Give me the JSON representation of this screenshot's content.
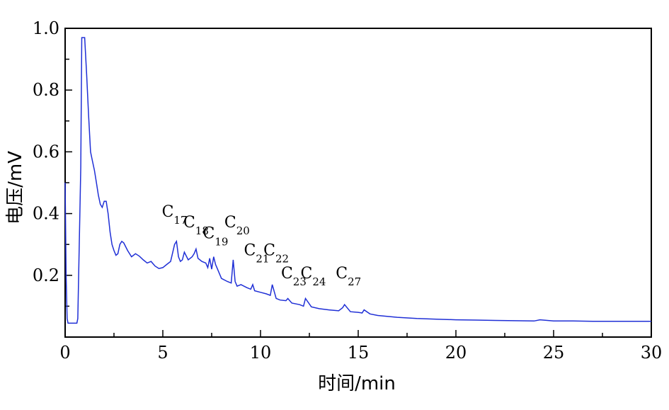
{
  "chart_data": {
    "type": "line",
    "title": "",
    "xlabel": "时间/min",
    "ylabel": "电压/mV",
    "xlim": [
      0,
      30
    ],
    "ylim": [
      0.0,
      1.0
    ],
    "x_ticks": [
      "0",
      "5",
      "10",
      "15",
      "20",
      "25",
      "30"
    ],
    "y_ticks": [
      "0.2",
      "0.4",
      "0.6",
      "0.8",
      "1.0"
    ],
    "grid": false,
    "legend": "none",
    "line_color": "#1f2fd6",
    "series": [
      {
        "x": [
          0,
          0.05,
          0.1,
          0.15,
          0.6,
          0.65,
          0.8,
          0.85,
          0.9,
          1.0,
          1.1,
          1.2,
          1.3,
          1.4,
          1.5,
          1.6,
          1.7,
          1.8,
          1.9,
          2.0,
          2.1,
          2.2,
          2.3,
          2.4,
          2.5,
          2.6,
          2.7,
          2.8,
          2.9,
          3.0,
          3.2,
          3.4,
          3.6,
          3.8,
          4.0,
          4.2,
          4.4,
          4.6,
          4.8,
          5.0,
          5.2,
          5.4,
          5.6,
          5.7,
          5.8,
          5.9,
          6.0,
          6.1,
          6.3,
          6.5,
          6.6,
          6.7,
          6.8,
          7.0,
          7.2,
          7.3,
          7.4,
          7.5,
          7.6,
          7.7,
          7.8,
          8.0,
          8.3,
          8.5,
          8.6,
          8.7,
          8.8,
          9.0,
          9.3,
          9.5,
          9.6,
          9.7,
          10.0,
          10.3,
          10.5,
          10.6,
          10.8,
          11.0,
          11.3,
          11.4,
          11.6,
          12.0,
          12.2,
          12.3,
          12.6,
          13.0,
          13.5,
          14.0,
          14.2,
          14.3,
          14.6,
          15.0,
          15.2,
          15.3,
          15.6,
          16.0,
          17.0,
          18.0,
          19.0,
          20.0,
          21.0,
          22.0,
          23.0,
          24.0,
          24.3,
          25.0,
          26.0,
          27.0,
          28.0,
          29.0,
          30.0
        ],
        "y": [
          0.5,
          0.2,
          0.06,
          0.045,
          0.045,
          0.06,
          0.55,
          0.97,
          0.97,
          0.97,
          0.85,
          0.72,
          0.6,
          0.57,
          0.54,
          0.5,
          0.46,
          0.43,
          0.42,
          0.44,
          0.44,
          0.4,
          0.34,
          0.3,
          0.28,
          0.265,
          0.27,
          0.3,
          0.31,
          0.305,
          0.28,
          0.26,
          0.27,
          0.262,
          0.25,
          0.24,
          0.245,
          0.23,
          0.222,
          0.225,
          0.235,
          0.245,
          0.3,
          0.31,
          0.26,
          0.245,
          0.25,
          0.275,
          0.25,
          0.26,
          0.27,
          0.285,
          0.255,
          0.245,
          0.24,
          0.225,
          0.255,
          0.22,
          0.26,
          0.235,
          0.22,
          0.19,
          0.18,
          0.175,
          0.25,
          0.18,
          0.165,
          0.17,
          0.16,
          0.155,
          0.17,
          0.15,
          0.145,
          0.14,
          0.135,
          0.17,
          0.125,
          0.12,
          0.118,
          0.125,
          0.11,
          0.105,
          0.1,
          0.125,
          0.098,
          0.092,
          0.088,
          0.085,
          0.095,
          0.105,
          0.082,
          0.08,
          0.078,
          0.088,
          0.075,
          0.07,
          0.064,
          0.06,
          0.058,
          0.056,
          0.055,
          0.054,
          0.053,
          0.052,
          0.056,
          0.052,
          0.052,
          0.051,
          0.051,
          0.051,
          0.051
        ]
      }
    ],
    "annotations": [
      {
        "base": "C",
        "sub": "17",
        "x": 5.6,
        "y": 0.39
      },
      {
        "base": "C",
        "sub": "18",
        "x": 6.7,
        "y": 0.355
      },
      {
        "base": "C",
        "sub": "19",
        "x": 7.7,
        "y": 0.32
      },
      {
        "base": "C",
        "sub": "20",
        "x": 8.8,
        "y": 0.355
      },
      {
        "base": "C",
        "sub": "21",
        "x": 9.8,
        "y": 0.265
      },
      {
        "base": "C",
        "sub": "22",
        "x": 10.8,
        "y": 0.265
      },
      {
        "base": "C",
        "sub": "23",
        "x": 11.7,
        "y": 0.19
      },
      {
        "base": "C",
        "sub": "24",
        "x": 12.7,
        "y": 0.19
      },
      {
        "base": "C",
        "sub": "27",
        "x": 14.5,
        "y": 0.19
      }
    ]
  }
}
